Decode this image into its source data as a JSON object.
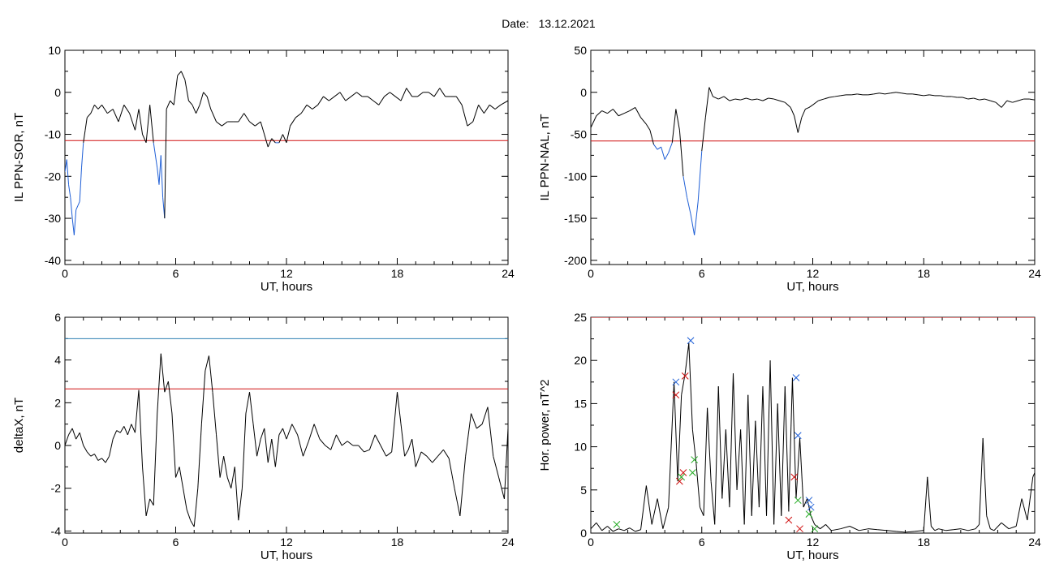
{
  "header": {
    "date_label": "Date:",
    "date_value": "13.12.2021"
  },
  "colors": {
    "series": "#000000",
    "below_threshold": "#1f5fd6",
    "threshold": "#d01010",
    "upper": "#2e7fb2",
    "marker_blue": "#1f5fd6",
    "marker_red": "#d01010",
    "marker_green": "#22aa22"
  },
  "chart_data": [
    {
      "type": "line",
      "ylabel": "IL PPN-SOR, nT",
      "xlabel": "UT, hours",
      "xlim": [
        0,
        24
      ],
      "ylim": [
        -41,
        10
      ],
      "xticks": [
        "0",
        "6",
        "12",
        "18",
        "24"
      ],
      "yticks": [
        "10",
        "0",
        "-10",
        "-20",
        "-30",
        "-40"
      ],
      "threshold": -11.5,
      "below_threshold_color": "blue",
      "series": [
        {
          "x": [
            0,
            0.1,
            0.2,
            0.3,
            0.4,
            0.5,
            0.6,
            0.7,
            0.8,
            0.9,
            1.0,
            1.1,
            1.2,
            1.4,
            1.6,
            1.8,
            2.0,
            2.3,
            2.6,
            2.9,
            3.2,
            3.5,
            3.8,
            4.0,
            4.2,
            4.4,
            4.6,
            4.8,
            5.0,
            5.1,
            5.2,
            5.3,
            5.4,
            5.5,
            5.7,
            5.9,
            6.1,
            6.3,
            6.5,
            6.7,
            6.9,
            7.1,
            7.3,
            7.5,
            7.7,
            7.9,
            8.2,
            8.5,
            8.8,
            9.1,
            9.4,
            9.7,
            10.0,
            10.3,
            10.6,
            10.8,
            11.0,
            11.2,
            11.4,
            11.6,
            11.8,
            12.0,
            12.2,
            12.5,
            12.8,
            13.1,
            13.4,
            13.7,
            14.0,
            14.3,
            14.6,
            14.9,
            15.2,
            15.5,
            15.8,
            16.1,
            16.4,
            16.7,
            17.0,
            17.3,
            17.6,
            17.9,
            18.2,
            18.5,
            18.8,
            19.1,
            19.4,
            19.7,
            20.0,
            20.3,
            20.6,
            20.9,
            21.2,
            21.5,
            21.8,
            22.1,
            22.4,
            22.7,
            23.0,
            23.3,
            23.6,
            24.0
          ],
          "y": [
            -19,
            -16,
            -22,
            -25,
            -30,
            -34,
            -28,
            -27,
            -26,
            -18,
            -12,
            -9,
            -6,
            -5,
            -3,
            -4,
            -3,
            -5,
            -4,
            -7,
            -3,
            -5,
            -9,
            -4,
            -10,
            -12,
            -3,
            -12,
            -18,
            -22,
            -15,
            -25,
            -30,
            -4,
            -2,
            -3,
            4,
            5,
            3,
            -2,
            -3,
            -5,
            -3,
            0,
            -1,
            -4,
            -7,
            -8,
            -7,
            -7,
            -7,
            -5,
            -7,
            -8,
            -7,
            -10,
            -13,
            -11,
            -12,
            -12,
            -10,
            -12,
            -8,
            -6,
            -5,
            -3,
            -4,
            -3,
            -1,
            -2,
            -1,
            0,
            -2,
            -1,
            0,
            -1,
            -1,
            -2,
            -3,
            -1,
            0,
            -1,
            -2,
            1,
            -1,
            -1,
            0,
            0,
            -1,
            1,
            -1,
            -1,
            -1,
            -3,
            -8,
            -7,
            -3,
            -5,
            -3,
            -4,
            -3,
            -2
          ]
        }
      ]
    },
    {
      "type": "line",
      "ylabel": "IL PPN-NAL, nT",
      "xlabel": "UT, hours",
      "xlim": [
        0,
        24
      ],
      "ylim": [
        -205,
        50
      ],
      "xticks": [
        "0",
        "6",
        "12",
        "18",
        "24"
      ],
      "yticks": [
        "50",
        "0",
        "-50",
        "-100",
        "-150",
        "-200"
      ],
      "threshold": -58,
      "below_threshold_color": "blue",
      "series": [
        {
          "x": [
            0,
            0.3,
            0.6,
            0.9,
            1.2,
            1.5,
            1.8,
            2.1,
            2.4,
            2.7,
            3.0,
            3.2,
            3.4,
            3.6,
            3.8,
            4.0,
            4.2,
            4.4,
            4.6,
            4.8,
            5.0,
            5.2,
            5.4,
            5.6,
            5.8,
            6.0,
            6.2,
            6.4,
            6.6,
            6.9,
            7.2,
            7.5,
            7.8,
            8.1,
            8.4,
            8.7,
            9.0,
            9.3,
            9.6,
            9.9,
            10.2,
            10.5,
            10.8,
            11.0,
            11.2,
            11.4,
            11.6,
            11.8,
            12.0,
            12.3,
            12.6,
            12.9,
            13.2,
            13.5,
            13.8,
            14.1,
            14.4,
            14.7,
            15.0,
            15.3,
            15.6,
            15.9,
            16.2,
            16.5,
            16.8,
            17.1,
            17.4,
            17.7,
            18.0,
            18.3,
            18.6,
            18.9,
            19.2,
            19.5,
            19.8,
            20.1,
            20.4,
            20.7,
            21.0,
            21.3,
            21.6,
            21.9,
            22.2,
            22.5,
            22.8,
            23.1,
            23.4,
            23.7,
            24.0
          ],
          "y": [
            -42,
            -28,
            -22,
            -25,
            -20,
            -28,
            -25,
            -22,
            -18,
            -30,
            -38,
            -45,
            -62,
            -68,
            -65,
            -80,
            -72,
            -60,
            -20,
            -45,
            -100,
            -125,
            -145,
            -170,
            -130,
            -70,
            -30,
            6,
            -5,
            -8,
            -5,
            -10,
            -8,
            -9,
            -7,
            -9,
            -8,
            -10,
            -7,
            -8,
            -10,
            -12,
            -18,
            -28,
            -48,
            -30,
            -20,
            -18,
            -15,
            -10,
            -8,
            -6,
            -5,
            -4,
            -3,
            -3,
            -2,
            -3,
            -3,
            -2,
            -1,
            -2,
            -1,
            0,
            -1,
            -2,
            -2,
            -3,
            -4,
            -3,
            -4,
            -4,
            -5,
            -5,
            -6,
            -6,
            -8,
            -7,
            -9,
            -8,
            -10,
            -12,
            -18,
            -10,
            -12,
            -10,
            -8,
            -8,
            -9
          ]
        }
      ]
    },
    {
      "type": "line",
      "ylabel": "deltaX, nT",
      "xlabel": "UT, hours",
      "xlim": [
        0,
        24
      ],
      "ylim": [
        -4.1,
        6
      ],
      "xticks": [
        "0",
        "6",
        "12",
        "18",
        "24"
      ],
      "yticks": [
        "6",
        "4",
        "2",
        "0",
        "-2",
        "-4"
      ],
      "upper_line": 5.0,
      "threshold": 2.65,
      "series": [
        {
          "x": [
            0,
            0.2,
            0.4,
            0.6,
            0.8,
            1.0,
            1.2,
            1.4,
            1.6,
            1.8,
            2.0,
            2.2,
            2.4,
            2.6,
            2.8,
            3.0,
            3.2,
            3.4,
            3.6,
            3.8,
            4.0,
            4.2,
            4.4,
            4.6,
            4.8,
            5.0,
            5.2,
            5.4,
            5.6,
            5.8,
            6.0,
            6.2,
            6.4,
            6.6,
            6.8,
            7.0,
            7.2,
            7.4,
            7.6,
            7.8,
            8.0,
            8.2,
            8.4,
            8.6,
            8.8,
            9.0,
            9.2,
            9.4,
            9.6,
            9.8,
            10.0,
            10.2,
            10.4,
            10.6,
            10.8,
            11.0,
            11.2,
            11.4,
            11.6,
            11.8,
            12.0,
            12.3,
            12.6,
            12.9,
            13.2,
            13.5,
            13.8,
            14.1,
            14.4,
            14.7,
            15.0,
            15.3,
            15.6,
            15.9,
            16.2,
            16.5,
            16.8,
            17.1,
            17.4,
            17.7,
            18.0,
            18.2,
            18.4,
            18.6,
            18.8,
            19.0,
            19.3,
            19.6,
            19.9,
            20.2,
            20.5,
            20.8,
            21.1,
            21.4,
            21.7,
            22.0,
            22.3,
            22.6,
            22.9,
            23.2,
            23.5,
            23.8,
            24.0
          ],
          "y": [
            0,
            0.5,
            0.8,
            0.3,
            0.6,
            0,
            -0.3,
            -0.5,
            -0.4,
            -0.7,
            -0.6,
            -0.8,
            -0.5,
            0.3,
            0.7,
            0.6,
            0.9,
            0.5,
            1.0,
            0.6,
            2.6,
            -1,
            -3.3,
            -2.5,
            -2.8,
            1.5,
            4.3,
            2.5,
            3.0,
            1.5,
            -1.5,
            -1.0,
            -2.0,
            -3.0,
            -3.5,
            -3.8,
            -2.0,
            1.0,
            3.5,
            4.2,
            2.5,
            0.5,
            -1.5,
            -0.5,
            -1.5,
            -2.0,
            -1.0,
            -3.5,
            -2.0,
            1.5,
            2.5,
            1.0,
            -0.5,
            0.3,
            0.8,
            -0.8,
            0.3,
            -1.0,
            0.5,
            0.8,
            0.3,
            1.0,
            0.5,
            -0.5,
            0.2,
            1.0,
            0.3,
            0,
            -0.2,
            0.5,
            0,
            0.2,
            0,
            0,
            -0.3,
            -0.2,
            0.5,
            0,
            -0.5,
            -0.3,
            2.5,
            1.0,
            -0.5,
            -0.2,
            0.3,
            -1.0,
            -0.3,
            -0.5,
            -0.8,
            -0.5,
            -0.2,
            -0.6,
            -2.0,
            -3.3,
            -0.5,
            1.5,
            0.8,
            1.0,
            1.8,
            -0.5,
            -1.5,
            -2.5,
            0.8
          ]
        }
      ]
    },
    {
      "type": "line",
      "ylabel": "Hor. power, nT^2",
      "xlabel": "UT, hours",
      "xlim": [
        0,
        24
      ],
      "ylim": [
        0,
        25
      ],
      "xticks": [
        "0",
        "6",
        "12",
        "18",
        "24"
      ],
      "yticks": [
        "25",
        "20",
        "15",
        "10",
        "5",
        "0"
      ],
      "threshold": 25,
      "series": [
        {
          "x": [
            0,
            0.3,
            0.6,
            0.9,
            1.2,
            1.5,
            1.8,
            2.1,
            2.4,
            2.7,
            3.0,
            3.3,
            3.6,
            3.9,
            4.2,
            4.5,
            4.7,
            4.9,
            5.1,
            5.3,
            5.5,
            5.7,
            5.9,
            6.1,
            6.3,
            6.5,
            6.7,
            6.9,
            7.1,
            7.3,
            7.5,
            7.7,
            7.9,
            8.1,
            8.3,
            8.5,
            8.7,
            8.9,
            9.1,
            9.3,
            9.5,
            9.7,
            9.9,
            10.1,
            10.3,
            10.5,
            10.7,
            10.9,
            11.1,
            11.3,
            11.5,
            11.7,
            11.9,
            12.1,
            12.4,
            12.7,
            13.0,
            13.5,
            14.0,
            14.5,
            15.0,
            15.5,
            16.0,
            16.5,
            17.0,
            17.5,
            18.0,
            18.2,
            18.4,
            18.6,
            18.8,
            19.2,
            19.6,
            20.0,
            20.4,
            20.8,
            21.0,
            21.2,
            21.4,
            21.6,
            21.8,
            22.2,
            22.6,
            23.0,
            23.3,
            23.6,
            23.9,
            24.0
          ],
          "y": [
            0.5,
            1.2,
            0.3,
            0.8,
            0.2,
            0.5,
            0.3,
            0.6,
            0.2,
            0.4,
            5.5,
            1.0,
            4.0,
            0.5,
            3.0,
            17.5,
            6.0,
            16.0,
            18.5,
            22.0,
            12.0,
            8.0,
            3.0,
            2.0,
            14.5,
            6.0,
            1.0,
            17.0,
            4.0,
            12.0,
            3.0,
            18.5,
            5.0,
            12.0,
            1.0,
            16.0,
            2.0,
            13.0,
            3.0,
            17.0,
            2.0,
            20.0,
            1.0,
            15.0,
            2.0,
            17.0,
            2.5,
            18.0,
            4.0,
            11.0,
            3.0,
            4.0,
            2.0,
            1.0,
            0.5,
            1.0,
            0.3,
            0.5,
            0.8,
            0.3,
            0.5,
            0.4,
            0.3,
            0.2,
            0.1,
            0.2,
            0.3,
            6.5,
            0.8,
            0.3,
            0.5,
            0.3,
            0.4,
            0.5,
            0.3,
            0.5,
            1.0,
            11.0,
            2.0,
            0.5,
            0.3,
            1.2,
            0.5,
            0.8,
            4.0,
            1.5,
            6.5,
            7.0
          ]
        }
      ],
      "markers_blue": [
        [
          4.6,
          17.5
        ],
        [
          5.4,
          22.3
        ],
        [
          11.1,
          18.0
        ],
        [
          11.2,
          11.3
        ],
        [
          11.8,
          3.8
        ],
        [
          11.9,
          3.0
        ]
      ],
      "markers_red": [
        [
          4.6,
          16.0
        ],
        [
          5.1,
          18.2
        ],
        [
          4.8,
          6.0
        ],
        [
          5.0,
          7.0
        ],
        [
          10.7,
          1.5
        ],
        [
          11.0,
          6.5
        ],
        [
          11.3,
          0.5
        ]
      ],
      "markers_green": [
        [
          1.4,
          1.0
        ],
        [
          4.9,
          6.5
        ],
        [
          5.6,
          8.5
        ],
        [
          5.5,
          7.0
        ],
        [
          11.2,
          3.8
        ],
        [
          11.8,
          2.2
        ],
        [
          12.1,
          0.5
        ]
      ]
    }
  ]
}
